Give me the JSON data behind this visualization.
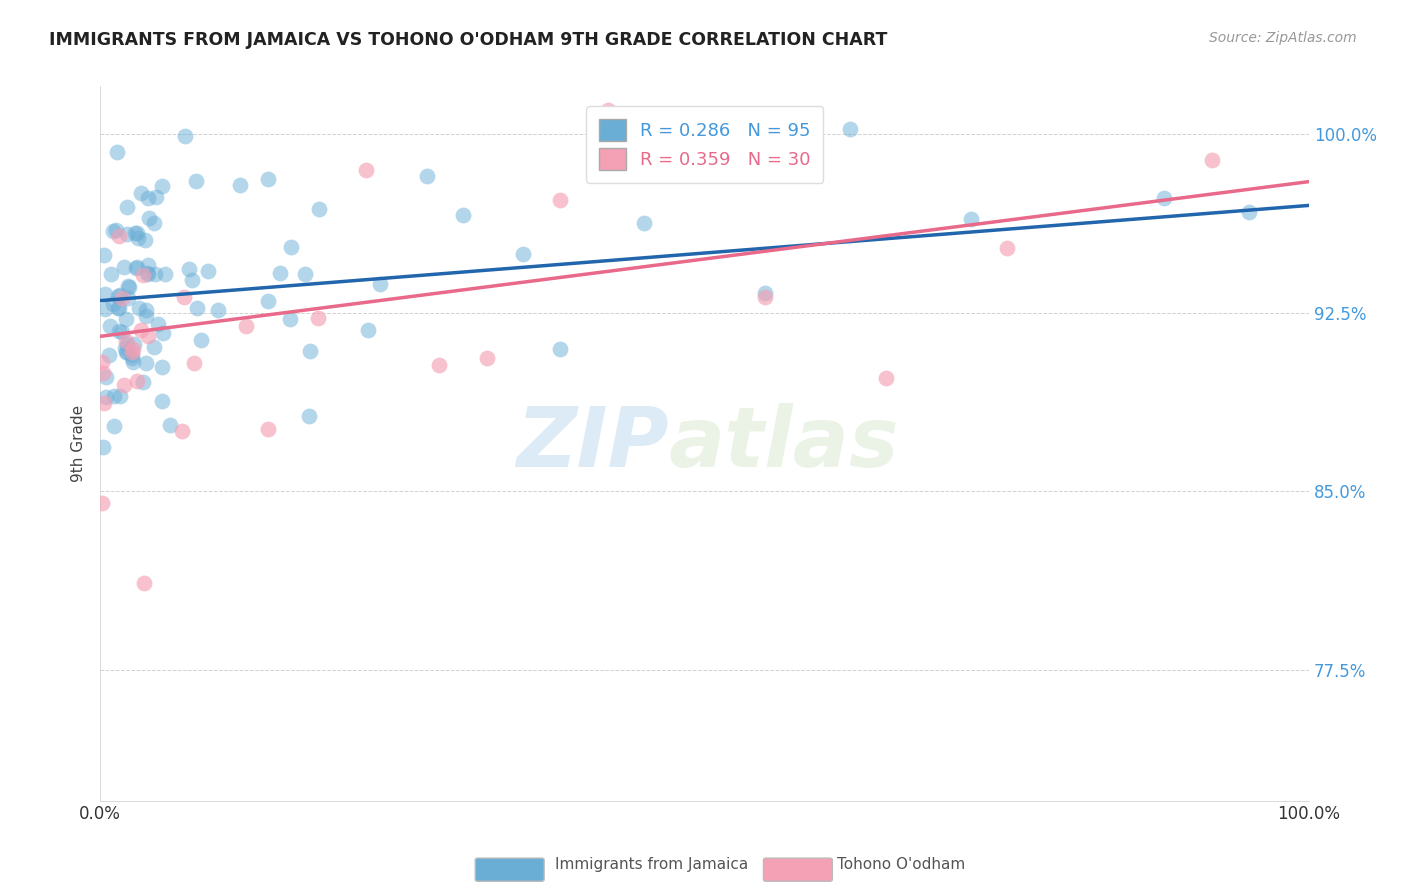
{
  "title": "IMMIGRANTS FROM JAMAICA VS TOHONO O'ODHAM 9TH GRADE CORRELATION CHART",
  "source": "Source: ZipAtlas.com",
  "ylabel": "9th Grade",
  "xlim": [
    0.0,
    1.0
  ],
  "ylim": [
    0.72,
    1.02
  ],
  "yticks": [
    0.775,
    0.85,
    0.925,
    1.0
  ],
  "ytick_labels": [
    "77.5%",
    "85.0%",
    "92.5%",
    "100.0%"
  ],
  "xticks": [
    0.0,
    0.2,
    0.4,
    0.6,
    0.8,
    1.0
  ],
  "xtick_labels": [
    "0.0%",
    "",
    "",
    "",
    "",
    "100.0%"
  ],
  "blue_R": 0.286,
  "blue_N": 95,
  "pink_R": 0.359,
  "pink_N": 30,
  "blue_color": "#6aaed6",
  "pink_color": "#f4a0b5",
  "blue_line_color": "#2166ac",
  "pink_line_color": "#e8698a",
  "legend_label_blue": "Immigrants from Jamaica",
  "legend_label_pink": "Tohono O'odham",
  "watermark_zip": "ZIP",
  "watermark_atlas": "atlas",
  "blue_line_x0": 0.0,
  "blue_line_y0": 0.93,
  "blue_line_x1": 1.0,
  "blue_line_y1": 0.97,
  "pink_line_x0": 0.0,
  "pink_line_y0": 0.915,
  "pink_line_x1": 1.0,
  "pink_line_y1": 0.98
}
